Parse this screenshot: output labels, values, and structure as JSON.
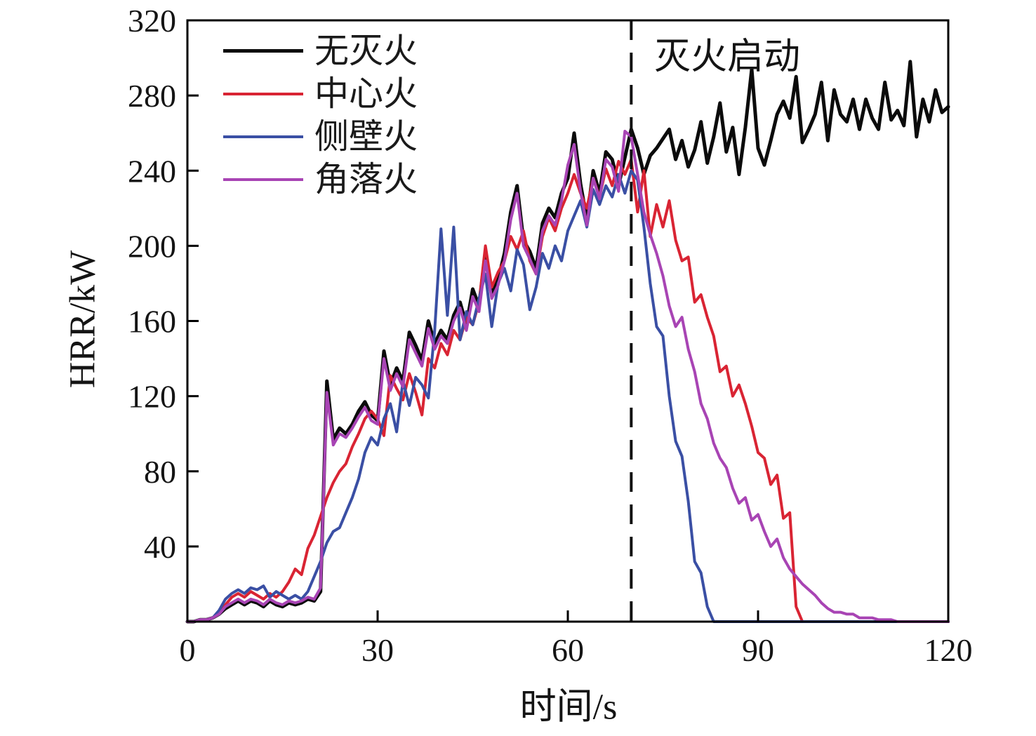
{
  "chart_data": {
    "type": "line",
    "title": "",
    "xlabel": "时间/s",
    "ylabel": "HRR/kW",
    "xlim": [
      0,
      120
    ],
    "ylim": [
      0,
      320
    ],
    "x_ticks": [
      0,
      30,
      60,
      90,
      120
    ],
    "y_ticks": [
      40,
      80,
      120,
      160,
      200,
      240,
      280,
      320
    ],
    "x_step": 1,
    "grid": false,
    "frame": true,
    "legend_position": "top-left",
    "event_line": {
      "x": 70,
      "label": "灭火启动",
      "style": "dashed",
      "color": "#111111"
    },
    "axis_color": "#000000",
    "series": [
      {
        "name": "无灭火",
        "color": "#0b0b0b",
        "width": 5,
        "values": [
          0,
          0,
          1,
          1,
          2,
          4,
          7,
          9,
          11,
          9,
          11,
          10,
          8,
          11,
          9,
          8,
          10,
          9,
          10,
          12,
          11,
          16,
          128,
          97,
          103,
          100,
          105,
          112,
          117,
          110,
          107,
          144,
          126,
          135,
          128,
          154,
          147,
          139,
          160,
          148,
          155,
          150,
          163,
          170,
          158,
          177,
          168,
          197,
          175,
          182,
          196,
          218,
          232,
          203,
          197,
          188,
          212,
          220,
          215,
          228,
          236,
          260,
          233,
          214,
          240,
          228,
          250,
          246,
          232,
          247,
          262,
          252,
          238,
          248,
          252,
          257,
          262,
          246,
          256,
          242,
          251,
          266,
          244,
          258,
          276,
          250,
          263,
          238,
          263,
          294,
          252,
          243,
          256,
          270,
          277,
          268,
          290,
          255,
          262,
          270,
          287,
          256,
          283,
          270,
          266,
          278,
          262,
          278,
          268,
          262,
          287,
          267,
          272,
          264,
          298,
          258,
          278,
          266,
          283,
          271,
          274
        ]
      },
      {
        "name": "中心火",
        "color": "#d92433",
        "width": 4,
        "values": [
          0,
          0,
          1,
          1,
          2,
          5,
          9,
          13,
          15,
          13,
          16,
          14,
          12,
          15,
          13,
          16,
          21,
          28,
          25,
          39,
          46,
          56,
          66,
          74,
          80,
          84,
          93,
          100,
          108,
          112,
          108,
          99,
          131,
          124,
          118,
          132,
          122,
          110,
          140,
          135,
          148,
          142,
          155,
          150,
          162,
          158,
          170,
          200,
          178,
          186,
          192,
          205,
          198,
          208,
          192,
          185,
          205,
          215,
          208,
          220,
          228,
          238,
          228,
          220,
          236,
          226,
          241,
          232,
          245,
          238,
          246,
          218,
          240,
          205,
          222,
          210,
          224,
          203,
          192,
          194,
          170,
          174,
          162,
          152,
          133,
          136,
          120,
          126,
          116,
          104,
          90,
          87,
          73,
          78,
          55,
          58,
          8,
          0,
          0,
          0,
          0,
          0,
          0,
          0,
          0,
          0,
          0,
          0,
          0,
          0,
          0,
          0,
          0,
          0,
          0,
          0,
          0,
          0,
          0,
          0,
          0
        ]
      },
      {
        "name": "侧壁火",
        "color": "#3a4fa4",
        "width": 4,
        "values": [
          0,
          0,
          1,
          1,
          2,
          6,
          12,
          15,
          17,
          15,
          18,
          17,
          19,
          13,
          16,
          14,
          12,
          14,
          12,
          16,
          24,
          32,
          42,
          48,
          50,
          58,
          66,
          76,
          90,
          98,
          94,
          108,
          116,
          101,
          128,
          115,
          130,
          126,
          119,
          155,
          209,
          163,
          210,
          150,
          165,
          158,
          172,
          185,
          157,
          180,
          188,
          176,
          198,
          190,
          166,
          178,
          196,
          188,
          200,
          192,
          208,
          216,
          224,
          210,
          230,
          222,
          232,
          226,
          238,
          228,
          240,
          235,
          210,
          180,
          157,
          152,
          120,
          96,
          88,
          64,
          32,
          26,
          8,
          0,
          0,
          0,
          0,
          0,
          0,
          0,
          0,
          0,
          0,
          0,
          0,
          0,
          0,
          0,
          0,
          0,
          0,
          0,
          0,
          0,
          0,
          0,
          0,
          0,
          0,
          0,
          0,
          0,
          0,
          0,
          0,
          0,
          0,
          0,
          0,
          0,
          0
        ]
      },
      {
        "name": "角落火",
        "color": "#a844b4",
        "width": 4,
        "values": [
          0,
          0,
          1,
          1,
          2,
          4,
          8,
          10,
          12,
          10,
          12,
          11,
          9,
          12,
          10,
          9,
          11,
          10,
          11,
          13,
          12,
          18,
          122,
          94,
          100,
          98,
          103,
          109,
          114,
          107,
          105,
          140,
          123,
          132,
          125,
          150,
          143,
          136,
          156,
          145,
          152,
          148,
          160,
          167,
          155,
          173,
          165,
          192,
          172,
          179,
          192,
          214,
          228,
          200,
          193,
          185,
          208,
          216,
          211,
          224,
          243,
          254,
          229,
          211,
          236,
          225,
          246,
          242,
          229,
          261,
          258,
          238,
          218,
          206,
          196,
          184,
          168,
          157,
          162,
          145,
          133,
          116,
          108,
          95,
          87,
          82,
          71,
          63,
          66,
          54,
          57,
          48,
          40,
          44,
          34,
          28,
          24,
          20,
          17,
          14,
          10,
          7,
          5,
          5,
          4,
          4,
          2,
          2,
          2,
          1,
          1,
          1,
          0,
          0,
          0,
          0,
          0,
          0,
          0,
          0,
          0
        ]
      }
    ]
  }
}
